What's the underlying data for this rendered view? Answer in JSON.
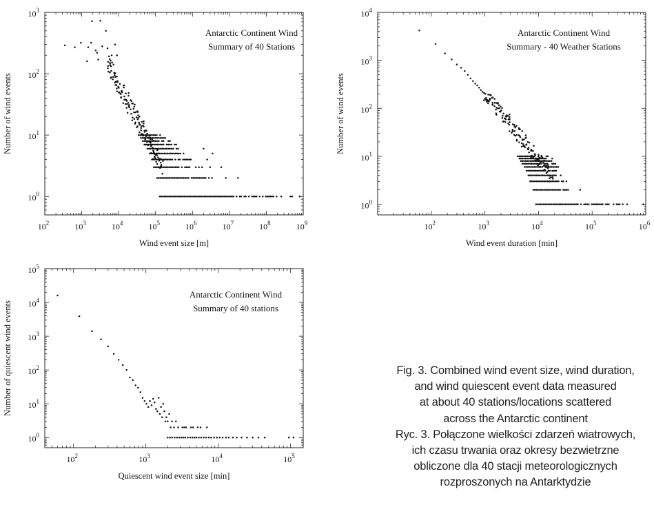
{
  "chart_data": [
    {
      "type": "scatter",
      "title": "Antarctic Continent Wind",
      "subtitle": "Summary of 40 Stations",
      "xlabel": "Wind event size [m]",
      "ylabel": "Number of wind events",
      "x_scale": "log",
      "y_scale": "log",
      "xlim": [
        100,
        1000000000
      ],
      "ylim": [
        0.5,
        1000
      ],
      "x_tick_labels": [
        "10^2",
        "10^3",
        "10^4",
        "10^5",
        "10^6",
        "10^7",
        "10^8",
        "10^9"
      ],
      "y_tick_labels": [
        "10^0",
        "10^1",
        "10^2",
        "10^3"
      ],
      "grid": false,
      "points": [
        [
          350,
          290
        ],
        [
          650,
          270
        ],
        [
          950,
          320
        ],
        [
          1500,
          270
        ],
        [
          1900,
          720
        ],
        [
          3200,
          730
        ],
        [
          4500,
          500
        ],
        [
          2600,
          220
        ],
        [
          2800,
          170
        ],
        [
          3600,
          280
        ],
        [
          1400,
          160
        ],
        [
          1800,
          320
        ],
        [
          2400,
          240
        ],
        [
          5000,
          260
        ],
        [
          6500,
          200
        ],
        [
          5800,
          150
        ],
        [
          8000,
          300
        ],
        [
          9000,
          200
        ]
      ],
      "power_law": {
        "x_from": 5000,
        "x_to": 150000,
        "y_from": 150,
        "y_to": 3.0
      },
      "level_rows": [
        {
          "y": 1,
          "x_from": 130000,
          "x_to": 450000000
        },
        {
          "y": 2,
          "x_from": 110000,
          "x_to": 5000000
        },
        {
          "y": 3,
          "x_from": 90000,
          "x_to": 2000000
        },
        {
          "y": 4,
          "x_from": 80000,
          "x_to": 1000000
        },
        {
          "y": 5,
          "x_from": 70000,
          "x_to": 700000
        },
        {
          "y": 6,
          "x_from": 60000,
          "x_to": 500000
        },
        {
          "y": 7,
          "x_from": 50000,
          "x_to": 400000
        },
        {
          "y": 8,
          "x_from": 45000,
          "x_to": 300000
        },
        {
          "y": 9,
          "x_from": 40000,
          "x_to": 250000
        },
        {
          "y": 10,
          "x_from": 35000,
          "x_to": 200000
        }
      ],
      "outliers": [
        [
          8000000,
          2
        ],
        [
          17000000,
          2
        ],
        [
          3000000,
          3
        ],
        [
          6000000,
          3
        ],
        [
          2500000,
          4
        ],
        [
          3500000,
          5
        ],
        [
          2000000,
          6
        ],
        [
          500000000,
          1
        ],
        [
          800000000,
          1
        ]
      ]
    },
    {
      "type": "scatter",
      "title": "Antarctic Continent Wind",
      "subtitle": "Summary - 40 Weather Stations",
      "xlabel": "Wind event duration [min]",
      "ylabel": "Number of wind events",
      "x_scale": "log",
      "y_scale": "log",
      "xlim": [
        10,
        1000000
      ],
      "ylim": [
        0.6,
        10000
      ],
      "x_tick_labels": [
        "10^2",
        "10^3",
        "10^4",
        "10^5",
        "10^6"
      ],
      "y_tick_labels": [
        "10^0",
        "10^1",
        "10^2",
        "10^3",
        "10^4"
      ],
      "grid": false,
      "points": [
        [
          60,
          4200
        ],
        [
          120,
          2200
        ],
        [
          180,
          1400
        ],
        [
          240,
          1050
        ],
        [
          300,
          820
        ],
        [
          360,
          700
        ],
        [
          420,
          600
        ],
        [
          480,
          500
        ],
        [
          540,
          420
        ],
        [
          600,
          370
        ],
        [
          660,
          330
        ],
        [
          720,
          300
        ],
        [
          780,
          270
        ],
        [
          840,
          240
        ],
        [
          900,
          220
        ],
        [
          960,
          210
        ],
        [
          1020,
          200
        ]
      ],
      "power_law": {
        "x_from": 1000,
        "x_to": 18000,
        "y_from": 200,
        "y_to": 4
      },
      "level_rows": [
        {
          "y": 1,
          "x_from": 9000,
          "x_to": 400000
        },
        {
          "y": 2,
          "x_from": 8000,
          "x_to": 50000
        },
        {
          "y": 3,
          "x_from": 7000,
          "x_to": 38000
        },
        {
          "y": 4,
          "x_from": 6500,
          "x_to": 32000
        },
        {
          "y": 5,
          "x_from": 6000,
          "x_to": 28000
        },
        {
          "y": 6,
          "x_from": 5500,
          "x_to": 25000
        },
        {
          "y": 7,
          "x_from": 5000,
          "x_to": 22000
        },
        {
          "y": 8,
          "x_from": 4700,
          "x_to": 20000
        },
        {
          "y": 9,
          "x_from": 4400,
          "x_to": 18000
        },
        {
          "y": 10,
          "x_from": 4100,
          "x_to": 16000
        }
      ],
      "outliers": [
        [
          60000,
          2
        ],
        [
          25000,
          1
        ],
        [
          900000,
          1
        ],
        [
          450000,
          1
        ],
        [
          120000,
          1
        ]
      ]
    },
    {
      "type": "scatter",
      "title": "Antarctic Continent Wind",
      "subtitle": "Summary of 40 stations",
      "xlabel": "Quiescent wind event size [min]",
      "ylabel": "Number of quiescent wind events",
      "x_scale": "log",
      "y_scale": "log",
      "xlim": [
        40,
        150000
      ],
      "ylim": [
        0.5,
        100000
      ],
      "x_tick_labels": [
        "10^2",
        "10^3",
        "10^4",
        "10^5"
      ],
      "y_tick_labels": [
        "10^0",
        "10^1",
        "10^2",
        "10^3",
        "10^4",
        "10^5"
      ],
      "grid": false,
      "points": [
        [
          60,
          16000
        ],
        [
          120,
          3900
        ],
        [
          180,
          1400
        ],
        [
          240,
          800
        ],
        [
          300,
          500
        ],
        [
          360,
          300
        ],
        [
          420,
          200
        ],
        [
          480,
          140
        ],
        [
          540,
          100
        ],
        [
          600,
          60
        ],
        [
          660,
          50
        ],
        [
          720,
          35
        ],
        [
          780,
          30
        ],
        [
          840,
          22
        ],
        [
          900,
          15
        ],
        [
          960,
          12
        ],
        [
          1020,
          10
        ],
        [
          1080,
          8
        ],
        [
          1140,
          12
        ],
        [
          1200,
          9
        ],
        [
          1260,
          14
        ],
        [
          1320,
          11
        ],
        [
          1380,
          7
        ],
        [
          1440,
          6
        ],
        [
          1500,
          15
        ],
        [
          1560,
          5
        ],
        [
          1620,
          8
        ],
        [
          1680,
          4
        ],
        [
          1740,
          10
        ],
        [
          1800,
          6
        ],
        [
          1860,
          3
        ],
        [
          1920,
          4
        ],
        [
          2000,
          3
        ],
        [
          2100,
          5
        ],
        [
          2200,
          2
        ],
        [
          2300,
          3
        ],
        [
          2450,
          2
        ],
        [
          2600,
          3
        ],
        [
          2800,
          2
        ],
        [
          3200,
          2
        ],
        [
          3400,
          2
        ],
        [
          3600,
          2
        ],
        [
          4200,
          2
        ],
        [
          4500,
          2
        ],
        [
          5200,
          2
        ],
        [
          5700,
          2
        ],
        [
          7000,
          2
        ],
        [
          2000,
          1
        ],
        [
          2150,
          1
        ],
        [
          2300,
          1
        ],
        [
          2500,
          1
        ],
        [
          2700,
          1
        ],
        [
          2900,
          1
        ],
        [
          3100,
          1
        ],
        [
          3300,
          1
        ],
        [
          3500,
          1
        ],
        [
          3800,
          1
        ],
        [
          4100,
          1
        ],
        [
          4400,
          1
        ],
        [
          4700,
          1
        ],
        [
          5000,
          1
        ],
        [
          5400,
          1
        ],
        [
          5800,
          1
        ],
        [
          6300,
          1
        ],
        [
          6800,
          1
        ],
        [
          7400,
          1
        ],
        [
          8000,
          1
        ],
        [
          8800,
          1
        ],
        [
          9600,
          1
        ],
        [
          10500,
          1
        ],
        [
          11500,
          1
        ],
        [
          12800,
          1
        ],
        [
          14000,
          1
        ],
        [
          16000,
          1
        ],
        [
          18000,
          1
        ],
        [
          21000,
          1
        ],
        [
          25000,
          1
        ],
        [
          30000,
          1
        ],
        [
          36000,
          1
        ],
        [
          44000,
          1
        ],
        [
          95000,
          1
        ],
        [
          110000,
          1
        ]
      ]
    }
  ],
  "caption": {
    "lines": [
      "Fig. 3. Combined wind event size, wind duration,",
      "and wind quiescent event data measured",
      "at about 40 stations/locations scattered",
      "across the Antarctic continent",
      "Ryc. 3. Połączone wielkości zdarzeń wiatrowych,",
      "ich czasu trwania oraz okresy bezwietrzne",
      "obliczone dla 40 stacji meteorologicznych",
      "rozproszonych na Antarktydzie"
    ]
  }
}
